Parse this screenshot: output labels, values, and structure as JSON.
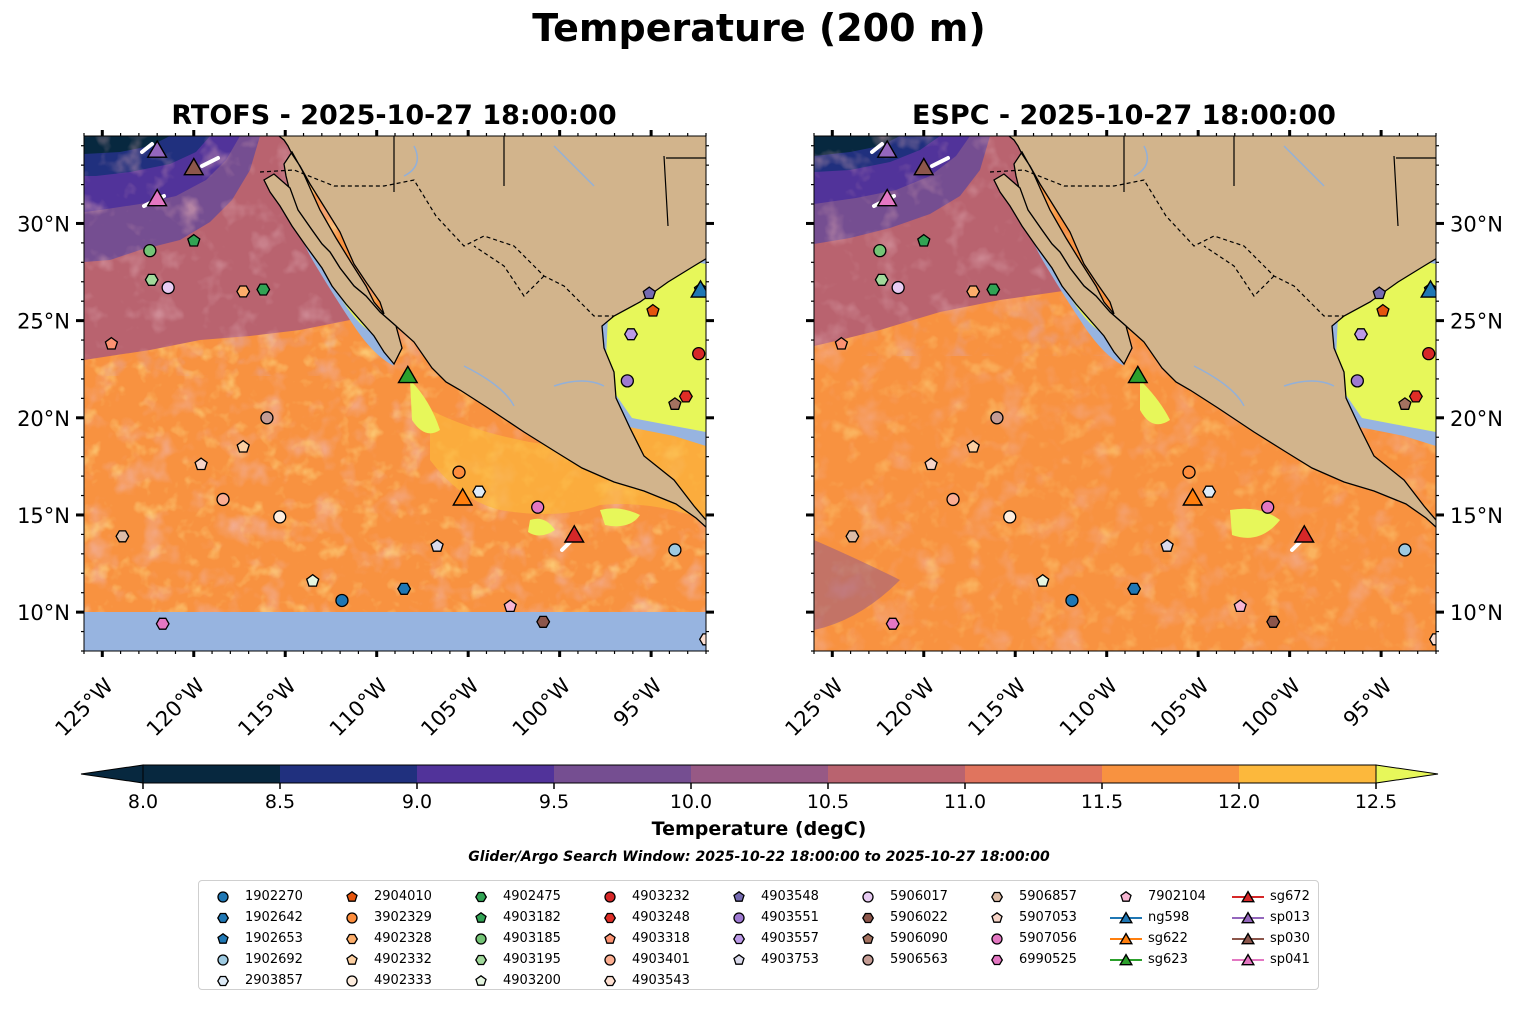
{
  "figure": {
    "title": "Temperature (200 m)",
    "left_panel_title": "RTOFS - 2025-10-27 18:00:00",
    "right_panel_title": "ESPC - 2025-10-27 18:00:00"
  },
  "chart_data": {
    "type": "heatmap",
    "title": "Temperature (200 m)",
    "panels": [
      "RTOFS - 2025-10-27 18:00:00",
      "ESPC - 2025-10-27 18:00:00"
    ],
    "x_range_lon": [
      -126,
      -92
    ],
    "y_range_lat": [
      8,
      34.5
    ],
    "x_ticks": [
      {
        "value": -125,
        "label": "125°W"
      },
      {
        "value": -120,
        "label": "120°W"
      },
      {
        "value": -115,
        "label": "115°W"
      },
      {
        "value": -110,
        "label": "110°W"
      },
      {
        "value": -105,
        "label": "105°W"
      },
      {
        "value": -100,
        "label": "100°W"
      },
      {
        "value": -95,
        "label": "95°W"
      }
    ],
    "y_ticks": [
      {
        "value": 10,
        "label": "10°N"
      },
      {
        "value": 15,
        "label": "15°N"
      },
      {
        "value": 20,
        "label": "20°N"
      },
      {
        "value": 25,
        "label": "25°N"
      },
      {
        "value": 30,
        "label": "30°N"
      }
    ],
    "colorbar": {
      "label": "Temperature (degC)",
      "ticks": [
        "8.0",
        "8.5",
        "9.0",
        "9.5",
        "10.0",
        "10.5",
        "11.0",
        "11.5",
        "12.0",
        "12.5"
      ],
      "colors": [
        "#07283f",
        "#20307e",
        "#51339a",
        "#754e91",
        "#975985",
        "#b9636f",
        "#e0745e",
        "#f89240",
        "#fcb83c"
      ],
      "under_color": "#07283f",
      "over_color": "#e7f75a",
      "extend": "both"
    },
    "search_window": "Glider/Argo Search Window: 2025-10-22 18:00:00 to 2025-10-27 18:00:00",
    "floats": [
      {
        "id": "1902270",
        "marker": "circle",
        "color": "#1f77b4",
        "lon": -111.9,
        "lat": 10.6
      },
      {
        "id": "1902642",
        "marker": "hexagon",
        "color": "#1f77b4",
        "lon": -108.5,
        "lat": 11.2
      },
      {
        "id": "1902653",
        "marker": "pentagon",
        "color": "#1f77b4",
        "lon": -92.3,
        "lat": 26.6
      },
      {
        "id": "1902692",
        "marker": "circle",
        "color": "#9ecae1",
        "lon": -93.7,
        "lat": 13.2
      },
      {
        "id": "2903857",
        "marker": "hexagon",
        "color": "#deebf7",
        "lon": -104.4,
        "lat": 16.2
      },
      {
        "id": "2904010",
        "marker": "pentagon",
        "color": "#e6550d",
        "lon": -94.9,
        "lat": 25.5
      },
      {
        "id": "3902329",
        "marker": "circle",
        "color": "#fd8d3c",
        "lon": -105.5,
        "lat": 17.2
      },
      {
        "id": "4902328",
        "marker": "hexagon",
        "color": "#fdae6b",
        "lon": -117.3,
        "lat": 26.5
      },
      {
        "id": "4902332",
        "marker": "pentagon",
        "color": "#fdd0a2",
        "lon": -117.3,
        "lat": 18.5
      },
      {
        "id": "4902333",
        "marker": "circle",
        "color": "#feedde",
        "lon": -115.3,
        "lat": 14.9
      },
      {
        "id": "4902475",
        "marker": "hexagon",
        "color": "#31a354",
        "lon": -116.2,
        "lat": 26.6
      },
      {
        "id": "4903182",
        "marker": "pentagon",
        "color": "#31a354",
        "lon": -120.0,
        "lat": 29.1
      },
      {
        "id": "4903185",
        "marker": "circle",
        "color": "#74c476",
        "lon": -122.4,
        "lat": 28.6
      },
      {
        "id": "4903195",
        "marker": "hexagon",
        "color": "#a1d99b",
        "lon": -122.3,
        "lat": 27.1
      },
      {
        "id": "4903200",
        "marker": "pentagon",
        "color": "#e5f5e0",
        "lon": -113.5,
        "lat": 11.6
      },
      {
        "id": "4903232",
        "marker": "circle",
        "color": "#d62728",
        "lon": -92.4,
        "lat": 23.3
      },
      {
        "id": "4903248",
        "marker": "hexagon",
        "color": "#de2d26",
        "lon": -93.1,
        "lat": 21.1
      },
      {
        "id": "4903318",
        "marker": "pentagon",
        "color": "#fc9272",
        "lon": -124.5,
        "lat": 23.8
      },
      {
        "id": "4903401",
        "marker": "circle",
        "color": "#fcae91",
        "lon": -118.4,
        "lat": 15.8
      },
      {
        "id": "4903543",
        "marker": "hexagon",
        "color": "#fee0d2",
        "lon": -92.0,
        "lat": 8.6
      },
      {
        "id": "4903548",
        "marker": "pentagon",
        "color": "#756bb1",
        "lon": -95.1,
        "lat": 26.4
      },
      {
        "id": "4903551",
        "marker": "circle",
        "color": "#9e79d1",
        "lon": -96.3,
        "lat": 21.9
      },
      {
        "id": "4903557",
        "marker": "hexagon",
        "color": "#bc9ae8",
        "lon": -96.1,
        "lat": 24.3
      },
      {
        "id": "4903753",
        "marker": "pentagon",
        "color": "#dadaeb",
        "lon": -106.7,
        "lat": 13.4
      },
      {
        "id": "5906017",
        "marker": "circle",
        "color": "#e7cbf2",
        "lon": -121.4,
        "lat": 26.7
      },
      {
        "id": "5906022",
        "marker": "hexagon",
        "color": "#8c564b",
        "lon": -100.9,
        "lat": 9.5
      },
      {
        "id": "5906090",
        "marker": "pentagon",
        "color": "#a47260",
        "lon": -93.7,
        "lat": 20.7
      },
      {
        "id": "5906563",
        "marker": "circle",
        "color": "#c49c94",
        "lon": -116.0,
        "lat": 20.0
      },
      {
        "id": "5906857",
        "marker": "hexagon",
        "color": "#ddbca6",
        "lon": -123.9,
        "lat": 13.9
      },
      {
        "id": "5907053",
        "marker": "pentagon",
        "color": "#f7d5c8",
        "lon": -119.6,
        "lat": 17.6
      },
      {
        "id": "5907056",
        "marker": "circle",
        "color": "#e377c2",
        "lon": -101.2,
        "lat": 15.4
      },
      {
        "id": "6990525",
        "marker": "hexagon",
        "color": "#e377c2",
        "lon": -121.7,
        "lat": 9.4
      },
      {
        "id": "7902104",
        "marker": "pentagon",
        "color": "#f7b6d2",
        "lon": -102.7,
        "lat": 10.3
      }
    ],
    "gliders": [
      {
        "id": "sg672",
        "color": "#d62728",
        "lon": -99.2,
        "lat": 14.0
      },
      {
        "id": "sp013",
        "color": "#9467bd",
        "lon": -122.0,
        "lat": 33.8
      },
      {
        "id": "sp030",
        "color": "#8c564b",
        "lon": -120.0,
        "lat": 32.9
      },
      {
        "id": "sp041",
        "color": "#e377c2",
        "lon": -122.0,
        "lat": 31.3
      },
      {
        "id": "ng598",
        "color": "#1f77b4",
        "lon": -92.3,
        "lat": 26.6
      },
      {
        "id": "sg622",
        "color": "#ff7f0e",
        "lon": -105.3,
        "lat": 15.9
      },
      {
        "id": "sg623",
        "color": "#2ca02c",
        "lon": -108.3,
        "lat": 22.2
      }
    ]
  },
  "legend": {
    "columns": [
      [
        {
          "label": "1902270",
          "marker": "circle",
          "color": "#1f77b4"
        },
        {
          "label": "1902642",
          "marker": "hexagon",
          "color": "#1f77b4"
        },
        {
          "label": "1902653",
          "marker": "pentagon",
          "color": "#1f77b4"
        },
        {
          "label": "1902692",
          "marker": "circle",
          "color": "#9ecae1"
        },
        {
          "label": "2903857",
          "marker": "hexagon",
          "color": "#deebf7"
        }
      ],
      [
        {
          "label": "2904010",
          "marker": "pentagon",
          "color": "#e6550d"
        },
        {
          "label": "3902329",
          "marker": "circle",
          "color": "#fd8d3c"
        },
        {
          "label": "4902328",
          "marker": "hexagon",
          "color": "#fdae6b"
        },
        {
          "label": "4902332",
          "marker": "pentagon",
          "color": "#fdd0a2"
        },
        {
          "label": "4902333",
          "marker": "circle",
          "color": "#feedde"
        }
      ],
      [
        {
          "label": "4902475",
          "marker": "hexagon",
          "color": "#31a354"
        },
        {
          "label": "4903182",
          "marker": "pentagon",
          "color": "#31a354"
        },
        {
          "label": "4903185",
          "marker": "circle",
          "color": "#74c476"
        },
        {
          "label": "4903195",
          "marker": "hexagon",
          "color": "#a1d99b"
        },
        {
          "label": "4903200",
          "marker": "pentagon",
          "color": "#e5f5e0"
        }
      ],
      [
        {
          "label": "4903232",
          "marker": "circle",
          "color": "#d62728"
        },
        {
          "label": "4903248",
          "marker": "hexagon",
          "color": "#de2d26"
        },
        {
          "label": "4903318",
          "marker": "pentagon",
          "color": "#fc9272"
        },
        {
          "label": "4903401",
          "marker": "circle",
          "color": "#fcae91"
        },
        {
          "label": "4903543",
          "marker": "hexagon",
          "color": "#fee0d2"
        }
      ],
      [
        {
          "label": "4903548",
          "marker": "pentagon",
          "color": "#756bb1"
        },
        {
          "label": "4903551",
          "marker": "circle",
          "color": "#9e79d1"
        },
        {
          "label": "4903557",
          "marker": "hexagon",
          "color": "#bc9ae8"
        },
        {
          "label": "4903753",
          "marker": "pentagon",
          "color": "#dadaeb"
        }
      ],
      [
        {
          "label": "5906017",
          "marker": "circle",
          "color": "#e7cbf2"
        },
        {
          "label": "5906022",
          "marker": "hexagon",
          "color": "#8c564b"
        },
        {
          "label": "5906090",
          "marker": "pentagon",
          "color": "#a47260"
        },
        {
          "label": "5906563",
          "marker": "circle",
          "color": "#c49c94"
        }
      ],
      [
        {
          "label": "5906857",
          "marker": "hexagon",
          "color": "#ddbca6"
        },
        {
          "label": "5907053",
          "marker": "pentagon",
          "color": "#f7d5c8"
        },
        {
          "label": "5907056",
          "marker": "circle",
          "color": "#e377c2"
        },
        {
          "label": "6990525",
          "marker": "hexagon",
          "color": "#e377c2"
        }
      ],
      [
        {
          "label": "7902104",
          "marker": "pentagon",
          "color": "#f7b6d2"
        },
        {
          "label": "ng598",
          "marker": "triangle",
          "color": "#1f77b4"
        },
        {
          "label": "sg622",
          "marker": "triangle",
          "color": "#ff7f0e"
        },
        {
          "label": "sg623",
          "marker": "triangle",
          "color": "#2ca02c"
        }
      ],
      [
        {
          "label": "sg672",
          "marker": "triangle",
          "color": "#d62728"
        },
        {
          "label": "sp013",
          "marker": "triangle",
          "color": "#9467bd"
        },
        {
          "label": "sp030",
          "marker": "triangle",
          "color": "#8c564b"
        },
        {
          "label": "sp041",
          "marker": "triangle",
          "color": "#e377c2"
        }
      ]
    ]
  },
  "colors": {
    "land": "#d2b48c",
    "shelf": "#97b4e0",
    "warm": "#e7f75a",
    "ocean_base": "#f89240"
  }
}
